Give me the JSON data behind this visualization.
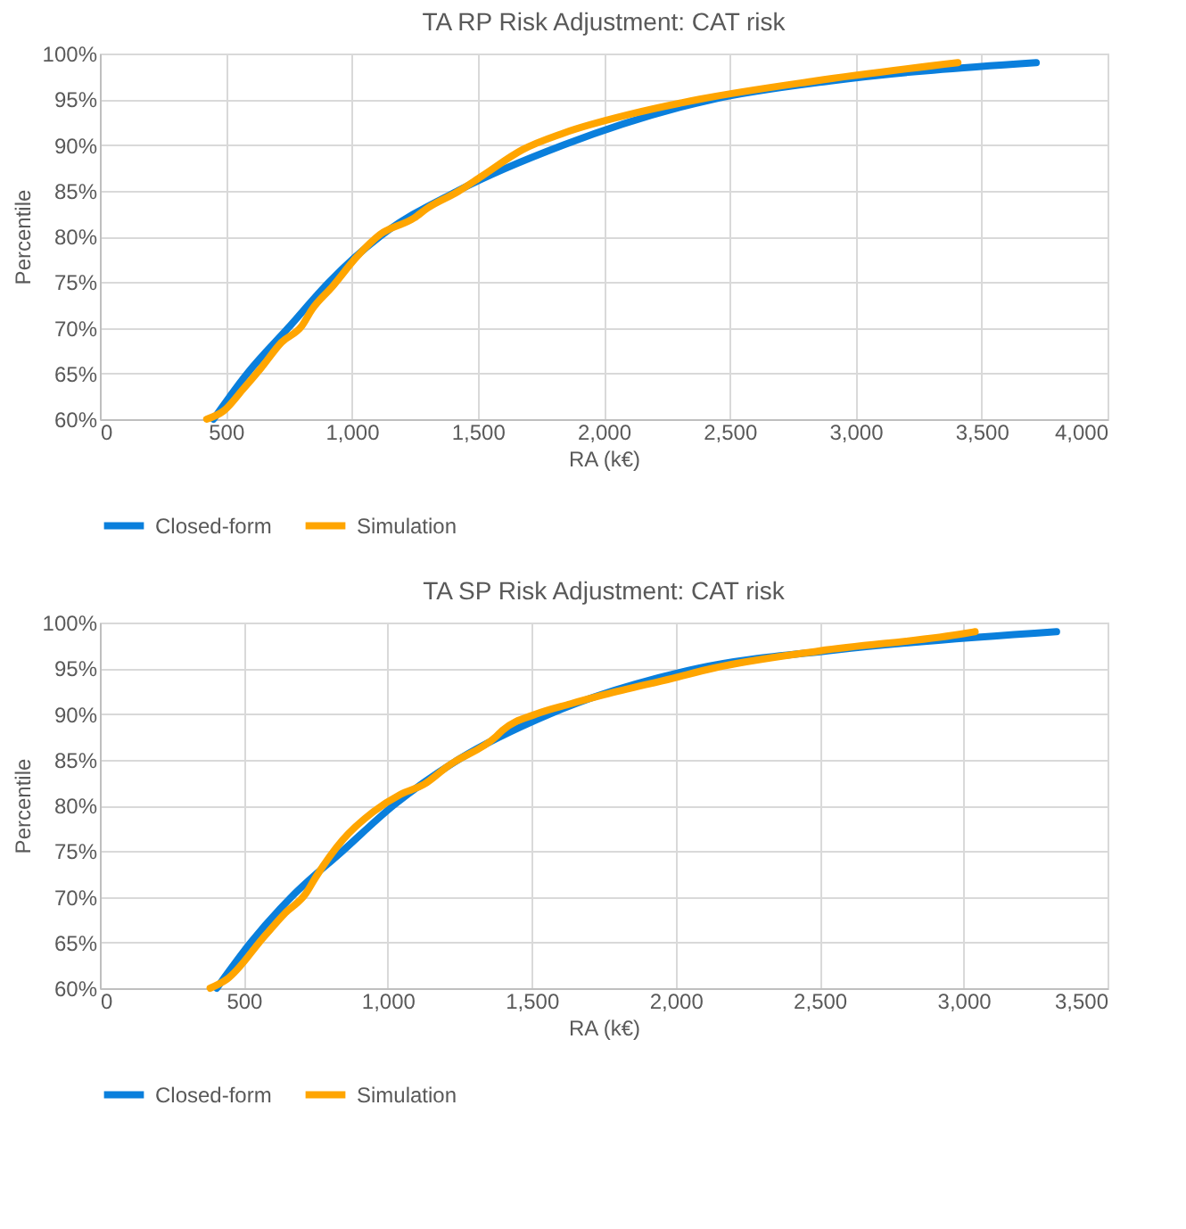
{
  "chart_data": [
    {
      "type": "line",
      "title": "TA RP Risk Adjustment: CAT risk",
      "xlabel": "RA (k€)",
      "ylabel": "Percentile",
      "xlim": [
        0,
        4000
      ],
      "xticks": [
        0,
        500,
        {
          "value": 1000,
          "label": "1,000"
        },
        {
          "value": 1500,
          "label": "1,500"
        },
        {
          "value": 2000,
          "label": "2,000"
        },
        {
          "value": 2500,
          "label": "2,500"
        },
        {
          "value": 3000,
          "label": "3,000"
        },
        {
          "value": 3500,
          "label": "3,500"
        },
        {
          "value": 4000,
          "label": "4,000"
        }
      ],
      "ylim": [
        60,
        100
      ],
      "yticks": [
        {
          "value": 60,
          "label": "60%"
        },
        {
          "value": 65,
          "label": "65%"
        },
        {
          "value": 70,
          "label": "70%"
        },
        {
          "value": 75,
          "label": "75%"
        },
        {
          "value": 80,
          "label": "80%"
        },
        {
          "value": 85,
          "label": "85%"
        },
        {
          "value": 90,
          "label": "90%"
        },
        {
          "value": 95,
          "label": "95%"
        },
        {
          "value": 100,
          "label": "100%"
        }
      ],
      "grid": true,
      "legend": "bottom",
      "marker": "none",
      "line_style": "solid",
      "series": [
        {
          "name": "Closed-form",
          "color": "#0a7fdc",
          "x": [
            451,
            585,
            748,
            910,
            1112,
            1422,
            1841,
            2435,
            2900,
            3717
          ],
          "values": [
            60,
            65,
            70,
            75,
            80,
            85,
            90,
            95,
            97,
            99
          ]
        },
        {
          "name": "Simulation",
          "color": "#ffa500",
          "x": [
            424,
            491,
            572,
            640,
            721,
            802,
            842,
            923,
            1018,
            1112,
            1247,
            1301,
            1422,
            1517,
            1679,
            1841,
            2111,
            2381,
            2839,
            3406
          ],
          "values": [
            60,
            60.9,
            63.4,
            65.6,
            68.4,
            70.2,
            72,
            74.5,
            77.7,
            80.2,
            82,
            83.1,
            84.9,
            86.6,
            89.5,
            91.3,
            93.4,
            95,
            97,
            99
          ]
        }
      ]
    },
    {
      "type": "line",
      "title": "TA SP Risk Adjustment: CAT risk",
      "xlabel": "RA (k€)",
      "ylabel": "Percentile",
      "xlim": [
        0,
        3500
      ],
      "xticks": [
        0,
        500,
        {
          "value": 1000,
          "label": "1,000"
        },
        {
          "value": 1500,
          "label": "1,500"
        },
        {
          "value": 2000,
          "label": "2,000"
        },
        {
          "value": 2500,
          "label": "2,500"
        },
        {
          "value": 3000,
          "label": "3,000"
        },
        {
          "value": 3500,
          "label": "3,500"
        }
      ],
      "ylim": [
        60,
        100
      ],
      "yticks": [
        {
          "value": 60,
          "label": "60%"
        },
        {
          "value": 65,
          "label": "65%"
        },
        {
          "value": 70,
          "label": "70%"
        },
        {
          "value": 75,
          "label": "75%"
        },
        {
          "value": 80,
          "label": "80%"
        },
        {
          "value": 85,
          "label": "85%"
        },
        {
          "value": 90,
          "label": "90%"
        },
        {
          "value": 95,
          "label": "95%"
        },
        {
          "value": 100,
          "label": "100%"
        }
      ],
      "grid": true,
      "legend": "bottom",
      "marker": "none",
      "line_style": "solid",
      "series": [
        {
          "name": "Closed-form",
          "color": "#0a7fdc",
          "x": [
            406,
            524,
            666,
            843,
            1020,
            1245,
            1563,
            2080,
            2555,
            3323
          ],
          "values": [
            60,
            65,
            70,
            75,
            80,
            85,
            90,
            95,
            97,
            99
          ]
        },
        {
          "name": "Simulation",
          "color": "#ffa500",
          "x": [
            383,
            442,
            572,
            643,
            714,
            749,
            843,
            950,
            1044,
            1126,
            1209,
            1375,
            1398,
            1516,
            1634,
            1752,
            1989,
            2130,
            2501,
            3004,
            3040
          ],
          "values": [
            60,
            61,
            65.7,
            68.2,
            70.3,
            72.1,
            76.2,
            79.3,
            81.2,
            82.3,
            84.3,
            87.5,
            88.2,
            90,
            91.1,
            92.1,
            93.9,
            95,
            96.9,
            98.8,
            99
          ]
        }
      ]
    }
  ]
}
